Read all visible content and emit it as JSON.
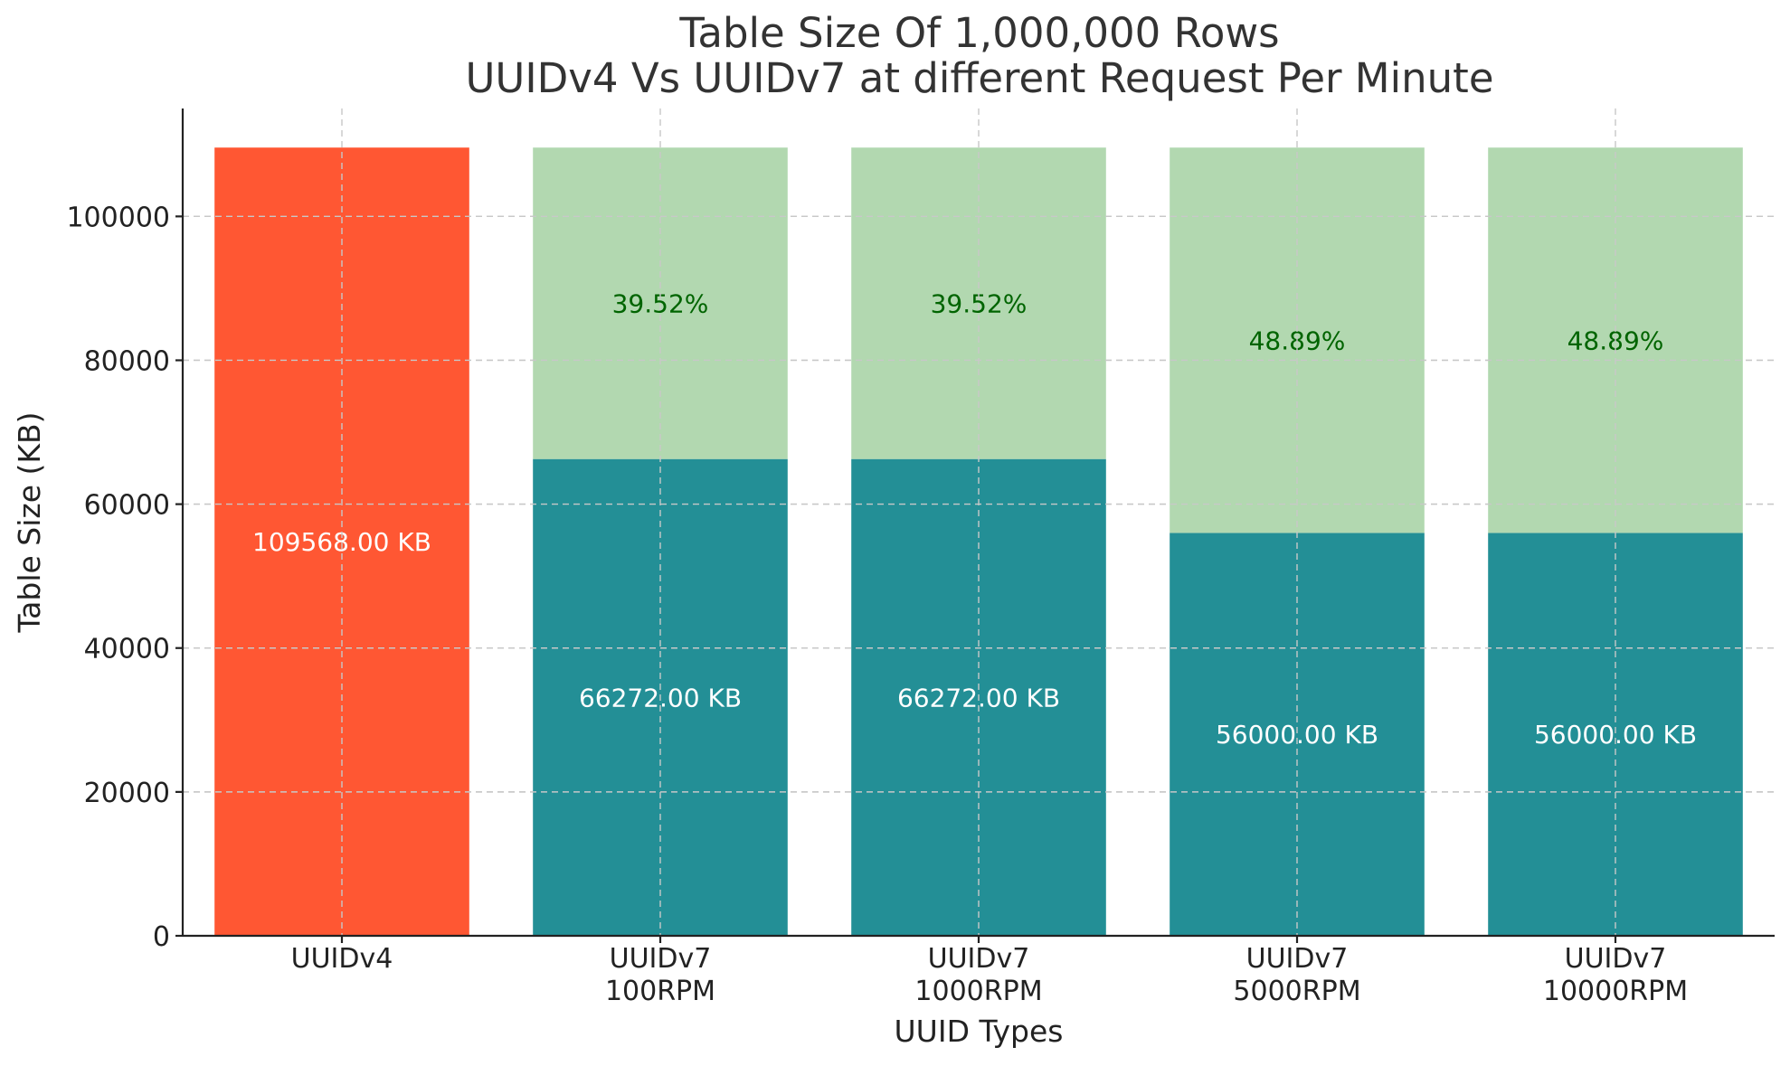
{
  "chart_data": {
    "type": "bar",
    "stacked": true,
    "title": [
      "Table Size Of 1,000,000 Rows",
      "UUIDv4 Vs UUIDv7 at different Request Per Minute"
    ],
    "xlabel": "UUID Types",
    "ylabel": "Table Size (KB)",
    "ylim": [
      0,
      115000
    ],
    "yticks": [
      0,
      20000,
      40000,
      60000,
      80000,
      100000
    ],
    "grid": true,
    "categories": [
      [
        "UUIDv4"
      ],
      [
        "UUIDv7",
        "100RPM"
      ],
      [
        "UUIDv7",
        "1000RPM"
      ],
      [
        "UUIDv7",
        "5000RPM"
      ],
      [
        "UUIDv7",
        "10000RPM"
      ]
    ],
    "series": [
      {
        "values": [
          109568,
          66272,
          66272,
          56000,
          56000
        ],
        "colors": [
          "#ff5733",
          "#238f96",
          "#238f96",
          "#238f96",
          "#238f96"
        ],
        "labels": [
          "109568.00 KB",
          "66272.00 KB",
          "66272.00 KB",
          "56000.00 KB",
          "56000.00 KB"
        ],
        "label_color": "#ffffff"
      },
      {
        "values": [
          0,
          43296,
          43296,
          53568,
          53568
        ],
        "colors": [
          "#b2d8b0",
          "#b2d8b0",
          "#b2d8b0",
          "#b2d8b0",
          "#b2d8b0"
        ],
        "labels": [
          "",
          "39.52%",
          "39.52%",
          "48.89%",
          "48.89%"
        ],
        "label_color": "#006400"
      }
    ]
  }
}
